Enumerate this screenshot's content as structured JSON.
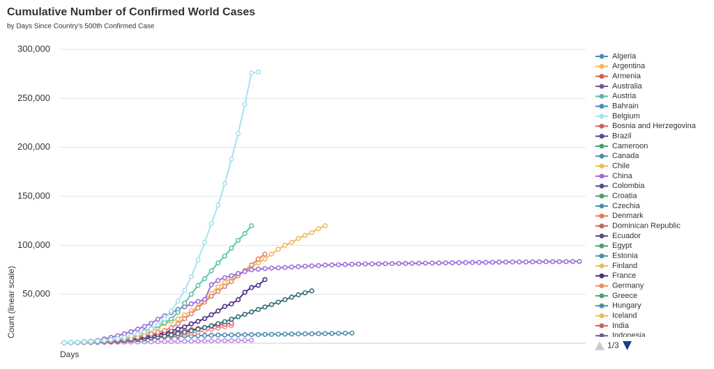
{
  "chart_data": {
    "type": "line",
    "title": "Cumulative Number of Confirmed World Cases",
    "subtitle": "by Days Since Country's 500th Confirmed Case",
    "x_label": "Days",
    "y_label": "Count (linear scale)",
    "xlim": [
      0,
      77
    ],
    "ylim": [
      0,
      300000
    ],
    "yticks": [
      {
        "value": 50000,
        "label": "50,000"
      },
      {
        "value": 100000,
        "label": "100,000"
      },
      {
        "value": 150000,
        "label": "150,000"
      },
      {
        "value": 200000,
        "label": "200,000"
      },
      {
        "value": 250000,
        "label": "250,000"
      },
      {
        "value": 300000,
        "label": "300,000"
      }
    ],
    "grid": true,
    "legend_position": "right",
    "legend_page": "1/3",
    "legend": [
      {
        "name": "Algeria",
        "color": "#4a8db0"
      },
      {
        "name": "Argentina",
        "color": "#f0b95a"
      },
      {
        "name": "Armenia",
        "color": "#d1605a"
      },
      {
        "name": "Australia",
        "color": "#6a5a9a"
      },
      {
        "name": "Austria",
        "color": "#5cb8a0"
      },
      {
        "name": "Bahrain",
        "color": "#4a8db0"
      },
      {
        "name": "Belgium",
        "color": "#a6e1ef"
      },
      {
        "name": "Bosnia and Herzegovina",
        "color": "#d1605a"
      },
      {
        "name": "Brazil",
        "color": "#5a4a8a"
      },
      {
        "name": "Cameroon",
        "color": "#4aa070"
      },
      {
        "name": "Canada",
        "color": "#4a8db0"
      },
      {
        "name": "Chile",
        "color": "#f0b95a"
      },
      {
        "name": "China",
        "color": "#9b6bd8"
      },
      {
        "name": "Colombia",
        "color": "#5a4a8a"
      },
      {
        "name": "Croatia",
        "color": "#4aa070"
      },
      {
        "name": "Czechia",
        "color": "#4a8db0"
      },
      {
        "name": "Denmark",
        "color": "#e07a50"
      },
      {
        "name": "Dominican Republic",
        "color": "#d1605a"
      },
      {
        "name": "Ecuador",
        "color": "#5a4a8a"
      },
      {
        "name": "Egypt",
        "color": "#4aa070"
      },
      {
        "name": "Estonia",
        "color": "#4a8db0"
      },
      {
        "name": "Finland",
        "color": "#f0b95a"
      },
      {
        "name": "France",
        "color": "#4b2a8a"
      },
      {
        "name": "Germany",
        "color": "#f08a6a"
      },
      {
        "name": "Greece",
        "color": "#4aa070"
      },
      {
        "name": "Hungary",
        "color": "#4a8db0"
      },
      {
        "name": "Iceland",
        "color": "#f0b95a"
      },
      {
        "name": "India",
        "color": "#d1605a"
      },
      {
        "name": "Indonesia",
        "color": "#6a5a9a"
      }
    ],
    "series": [
      {
        "color": "#4a8db0",
        "values": [
          500,
          700,
          900,
          1200,
          1500,
          1900,
          2300,
          2800,
          3300,
          3800,
          4300,
          4800,
          5200,
          5600,
          6000,
          6400,
          6700,
          7000,
          7300,
          7500,
          7700,
          7900,
          8100,
          8300,
          8400,
          8500,
          8600,
          8700,
          8800,
          8900,
          9000,
          9100,
          9200,
          9300,
          9400,
          9500,
          9600,
          9700,
          9800,
          9900,
          10000,
          10100,
          10200,
          10300
        ]
      },
      {
        "color": "#c08ee8",
        "values": [
          500,
          550,
          600,
          700,
          750,
          800,
          900,
          950,
          1000,
          1100,
          1200,
          1300,
          1400,
          1500,
          1600,
          1700,
          1800,
          1900,
          2000,
          2100,
          2200,
          2300,
          2400,
          2500,
          2600,
          2700,
          2800,
          2900,
          3000
        ]
      },
      {
        "color": "#f08ca0",
        "values": [
          500,
          650,
          800,
          1000,
          1200,
          1500,
          1800,
          2100,
          2500,
          2900,
          3400,
          3900,
          4500,
          5100,
          5800,
          6500,
          7300,
          8200,
          9200,
          10300,
          11500,
          12800,
          14200,
          15500,
          16800,
          18000
        ]
      },
      {
        "color": "#d1605a",
        "values": [
          500,
          700,
          900,
          1200,
          1500,
          1900,
          2400,
          2900,
          3500,
          4200,
          5000,
          5800,
          6700,
          7600,
          8600,
          9600,
          10600,
          11700,
          12800,
          13900,
          15000,
          16100,
          17200,
          18300,
          19400,
          20500
        ]
      },
      {
        "color": "#2e6a78",
        "values": [
          500,
          600,
          700,
          800,
          1000,
          1200,
          1500,
          1800,
          2200,
          2700,
          3200,
          3800,
          4500,
          5300,
          6200,
          7300,
          8500,
          9800,
          11200,
          12700,
          14300,
          16000,
          17900,
          20000,
          22000,
          24500,
          27000,
          29500,
          32000,
          34500,
          37000,
          39500,
          42000,
          44500,
          47000,
          49500,
          51500,
          53500
        ]
      },
      {
        "color": "#4b2a8a",
        "values": [
          500,
          600,
          700,
          900,
          1100,
          1400,
          1800,
          2300,
          2900,
          3700,
          4500,
          5400,
          6600,
          7700,
          9000,
          10900,
          12600,
          14500,
          16700,
          19800,
          22300,
          25200,
          29100,
          32900,
          37600,
          40200,
          44500,
          52000,
          56900,
          59100,
          65000
        ]
      },
      {
        "color": "#f0b95a",
        "values": [
          500,
          700,
          900,
          1100,
          1400,
          1800,
          2300,
          2900,
          3700,
          4600,
          5800,
          7300,
          9300,
          12300,
          15300,
          19800,
          22200,
          24800,
          29000,
          33000,
          37300,
          43900,
          50900,
          57700,
          62000,
          67000,
          70000,
          74000,
          78000,
          82000,
          86000,
          91000,
          96000,
          100000,
          103000,
          107000,
          110000,
          113000,
          117000,
          120000
        ]
      },
      {
        "color": "#e0856a",
        "values": [
          500,
          600,
          800,
          1000,
          1200,
          1500,
          1900,
          2400,
          3100,
          3800,
          4600,
          6000,
          7700,
          9300,
          11000,
          13000,
          16000,
          20000,
          25000,
          30000,
          36000,
          42000,
          48000,
          53000,
          58000,
          63000,
          69000,
          74000,
          80000,
          86000,
          91000
        ]
      },
      {
        "color": "#9b6bd8",
        "values": [
          500,
          640,
          920,
          1400,
          2100,
          2900,
          4500,
          6000,
          7700,
          9700,
          11800,
          14400,
          17200,
          20400,
          24500,
          28000,
          31200,
          34500,
          37200,
          40200,
          42700,
          44700,
          59800,
          64000,
          67000,
          69000,
          71200,
          73200,
          75000,
          75600,
          76200,
          76700,
          77000,
          77300,
          77800,
          78200,
          78600,
          78900,
          79300,
          79800,
          80000,
          80200,
          80400,
          80600,
          80800,
          81000,
          81000,
          81100,
          81200,
          81300,
          81400,
          81500,
          81600,
          81700,
          81800,
          81900,
          82000,
          82100,
          82200,
          82300,
          82400,
          82500,
          82500,
          82600,
          82700,
          82800,
          82900,
          83000,
          83000,
          83000,
          83100,
          83200,
          83300,
          83300,
          83400,
          83400,
          83500,
          83500
        ]
      },
      {
        "color": "#5cc3a8",
        "values": [
          500,
          900,
          1100,
          1700,
          2000,
          2500,
          3100,
          3900,
          4600,
          5900,
          7400,
          9200,
          12400,
          15100,
          17700,
          21000,
          24700,
          31500,
          41000,
          50000,
          59000,
          66000,
          74000,
          82000,
          89000,
          97000,
          105000,
          112000,
          120000
        ]
      },
      {
        "color": "#a6e1ef",
        "values": [
          500,
          700,
          1000,
          1300,
          1700,
          2200,
          2900,
          3700,
          4600,
          5800,
          7300,
          9200,
          11500,
          14500,
          19000,
          25000,
          33000,
          43000,
          54000,
          68000,
          85000,
          103000,
          122000,
          141000,
          163000,
          188000,
          214000,
          244000,
          276000,
          277000
        ]
      }
    ]
  }
}
